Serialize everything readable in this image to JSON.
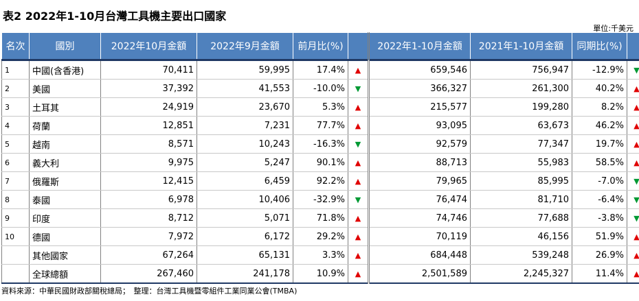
{
  "title": "表2  2022年1-10月台灣工具機主要出口國家",
  "unit": "單位:千美元",
  "headers": {
    "rank": "名次",
    "country": "國別",
    "oct2022": "2022年10月金額",
    "sep2022": "2022年9月金額",
    "mom": "前月比(%)",
    "ytd2022": "2022年1-10月金額",
    "ytd2021": "2021年1-10月金額",
    "yoy": "同期比(%)"
  },
  "rows": [
    {
      "rank": "1",
      "country": "中國(含香港)",
      "oct2022": "70,411",
      "sep2022": "59,995",
      "mom": "17.4%",
      "mom_dir": "up",
      "ytd2022": "659,546",
      "ytd2021": "756,947",
      "yoy": "-12.9%",
      "yoy_dir": "down"
    },
    {
      "rank": "2",
      "country": "美國",
      "oct2022": "37,392",
      "sep2022": "41,553",
      "mom": "-10.0%",
      "mom_dir": "down",
      "ytd2022": "366,327",
      "ytd2021": "261,300",
      "yoy": "40.2%",
      "yoy_dir": "up"
    },
    {
      "rank": "3",
      "country": "土耳其",
      "oct2022": "24,919",
      "sep2022": "23,670",
      "mom": "5.3%",
      "mom_dir": "up",
      "ytd2022": "215,577",
      "ytd2021": "199,280",
      "yoy": "8.2%",
      "yoy_dir": "up"
    },
    {
      "rank": "4",
      "country": "荷蘭",
      "oct2022": "12,851",
      "sep2022": "7,231",
      "mom": "77.7%",
      "mom_dir": "up",
      "ytd2022": "93,095",
      "ytd2021": "63,673",
      "yoy": "46.2%",
      "yoy_dir": "up"
    },
    {
      "rank": "5",
      "country": "越南",
      "oct2022": "8,571",
      "sep2022": "10,243",
      "mom": "-16.3%",
      "mom_dir": "down",
      "ytd2022": "92,579",
      "ytd2021": "77,347",
      "yoy": "19.7%",
      "yoy_dir": "up"
    },
    {
      "rank": "6",
      "country": "義大利",
      "oct2022": "9,975",
      "sep2022": "5,247",
      "mom": "90.1%",
      "mom_dir": "up",
      "ytd2022": "88,713",
      "ytd2021": "55,983",
      "yoy": "58.5%",
      "yoy_dir": "up"
    },
    {
      "rank": "7",
      "country": "俄羅斯",
      "oct2022": "12,415",
      "sep2022": "6,459",
      "mom": "92.2%",
      "mom_dir": "up",
      "ytd2022": "79,965",
      "ytd2021": "85,995",
      "yoy": "-7.0%",
      "yoy_dir": "down"
    },
    {
      "rank": "8",
      "country": "泰國",
      "oct2022": "6,978",
      "sep2022": "10,406",
      "mom": "-32.9%",
      "mom_dir": "down",
      "ytd2022": "76,474",
      "ytd2021": "81,710",
      "yoy": "-6.4%",
      "yoy_dir": "down"
    },
    {
      "rank": "9",
      "country": "印度",
      "oct2022": "8,712",
      "sep2022": "5,071",
      "mom": "71.8%",
      "mom_dir": "up",
      "ytd2022": "74,746",
      "ytd2021": "77,688",
      "yoy": "-3.8%",
      "yoy_dir": "down"
    },
    {
      "rank": "10",
      "country": "德國",
      "oct2022": "7,972",
      "sep2022": "6,172",
      "mom": "29.2%",
      "mom_dir": "up",
      "ytd2022": "70,119",
      "ytd2021": "46,156",
      "yoy": "51.9%",
      "yoy_dir": "up"
    },
    {
      "rank": "",
      "country": "其他國家",
      "oct2022": "67,264",
      "sep2022": "65,131",
      "mom": "3.3%",
      "mom_dir": "up",
      "ytd2022": "684,448",
      "ytd2021": "539,248",
      "yoy": "26.9%",
      "yoy_dir": "up"
    },
    {
      "rank": "",
      "country": "全球總額",
      "oct2022": "267,460",
      "sep2022": "241,178",
      "mom": "10.9%",
      "mom_dir": "up",
      "ytd2022": "2,501,589",
      "ytd2021": "2,245,327",
      "yoy": "11.4%",
      "yoy_dir": "up"
    }
  ],
  "arrows": {
    "up": "▲",
    "down": "▼"
  },
  "colors": {
    "header_bg": "#4f81bd",
    "up": "#e00000",
    "down": "#009933"
  },
  "source": "資料來源：中華民國財政部關稅總局；　整理：台灣工具機暨零組件工業同業公會(TMBA)"
}
